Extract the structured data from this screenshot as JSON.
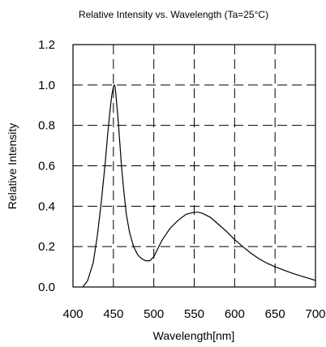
{
  "chart_data": {
    "type": "line",
    "title": "Relative Intensity vs. Wavelength (Ta=25°C)",
    "xlabel": "Wavelength[nm]",
    "ylabel": "Relative Intensity",
    "xlim": [
      400,
      700
    ],
    "ylim": [
      0.0,
      1.2
    ],
    "x_ticks": [
      400,
      450,
      500,
      550,
      600,
      650,
      700
    ],
    "x_tick_labels": [
      "400",
      "450",
      "500",
      "550",
      "600",
      "650",
      "700"
    ],
    "y_ticks": [
      0.0,
      0.2,
      0.4,
      0.6,
      0.8,
      1.0,
      1.2
    ],
    "y_tick_labels": [
      "0.0",
      "0.2",
      "0.4",
      "0.6",
      "0.8",
      "1.0",
      "1.2"
    ],
    "grid": true,
    "grid_style": "dashed",
    "series": [
      {
        "color": "#000000",
        "x": [
          412,
          418,
          425,
          430,
          435,
          440,
          443,
          446,
          448,
          450,
          451,
          452,
          453,
          454,
          456,
          458,
          460,
          463,
          466,
          470,
          475,
          480,
          485,
          490,
          495,
          500,
          505,
          510,
          520,
          530,
          540,
          550,
          555,
          560,
          570,
          580,
          590,
          600,
          610,
          620,
          630,
          640,
          650,
          660,
          670,
          680,
          690,
          700
        ],
        "y": [
          0.0,
          0.03,
          0.12,
          0.25,
          0.42,
          0.62,
          0.76,
          0.88,
          0.95,
          0.99,
          1.0,
          0.99,
          0.96,
          0.91,
          0.82,
          0.71,
          0.6,
          0.47,
          0.36,
          0.27,
          0.2,
          0.16,
          0.14,
          0.13,
          0.13,
          0.15,
          0.19,
          0.23,
          0.29,
          0.33,
          0.36,
          0.37,
          0.37,
          0.365,
          0.345,
          0.31,
          0.275,
          0.235,
          0.2,
          0.168,
          0.14,
          0.118,
          0.1,
          0.085,
          0.07,
          0.057,
          0.045,
          0.033
        ]
      }
    ]
  }
}
